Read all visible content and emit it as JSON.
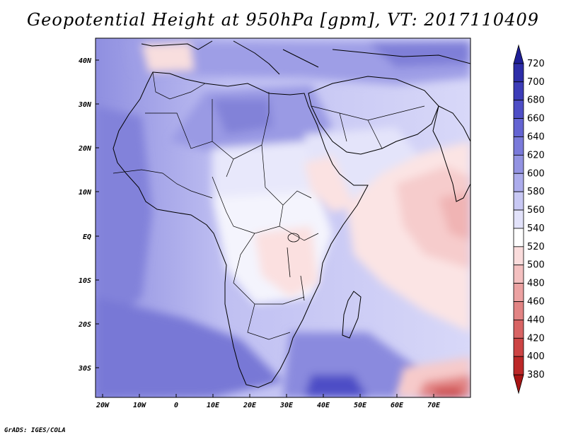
{
  "title": "Geopotential Height at 950hPa [gpm], VT: 2017110409",
  "credit": "GrADS: IGES/COLA",
  "map": {
    "region": "Africa, Middle East and western Indian Ocean",
    "lat_labels": [
      "40N",
      "30N",
      "20N",
      "10N",
      "EQ",
      "10S",
      "20S",
      "30S"
    ],
    "lon_labels": [
      "20W",
      "10W",
      "0",
      "10E",
      "20E",
      "30E",
      "40E",
      "50E",
      "60E",
      "70E"
    ]
  },
  "colorbar": {
    "levels": [
      "720",
      "700",
      "680",
      "660",
      "640",
      "620",
      "600",
      "580",
      "560",
      "540",
      "520",
      "500",
      "480",
      "460",
      "440",
      "420",
      "400",
      "380"
    ],
    "colors": [
      "#1e1e96",
      "#2d2da8",
      "#3c3cb8",
      "#4e4ec6",
      "#6464d2",
      "#7a7ada",
      "#9393e2",
      "#acacec",
      "#c8c8f4",
      "#e2e2fa",
      "#ffffff",
      "#fadcdc",
      "#f4c0c0",
      "#eca2a2",
      "#e28484",
      "#d86464",
      "#cc4444",
      "#bc2828",
      "#a81414"
    ]
  }
}
